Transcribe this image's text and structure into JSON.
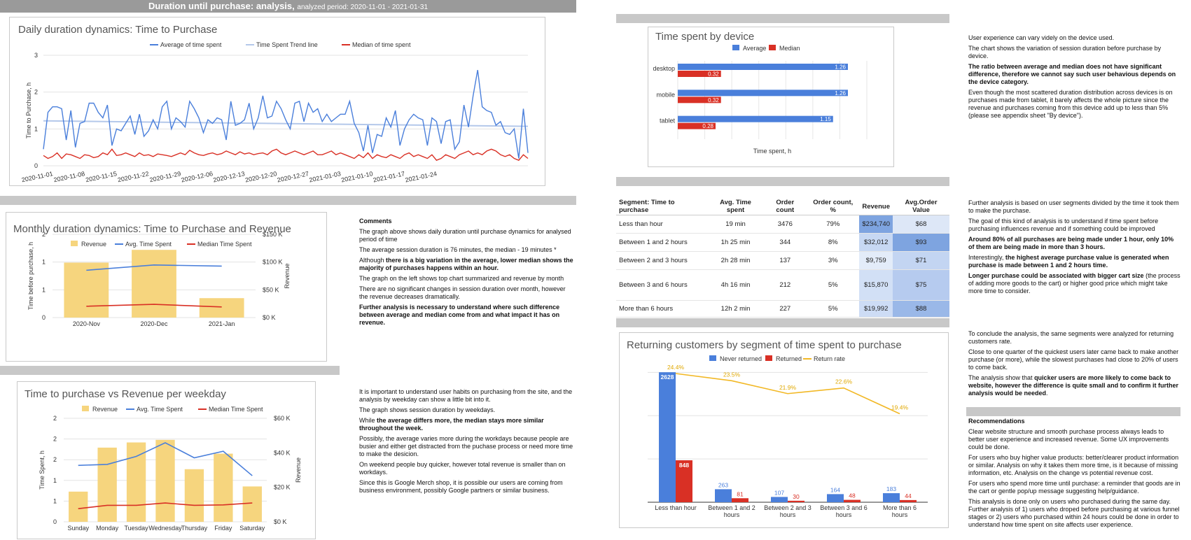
{
  "header": {
    "title": "Duration until purchase: analysis,",
    "period": "analyzed period: 2020-11-01 - 2021-01-31"
  },
  "colors": {
    "blue": "#4a7fdb",
    "lightblue": "#b4c8ea",
    "red": "#d93025",
    "yellow": "#f6d57e",
    "gold": "#f2b825"
  },
  "chart_data": [
    {
      "type": "line",
      "title": "Daily duration dynamics: Time to Purchase",
      "ylabel": "Time to Purchase, h",
      "ylim": [
        0,
        3
      ],
      "yticks": [
        "0",
        "1",
        "2",
        "3"
      ],
      "xticks": [
        "2020-11-01",
        "2020-11-08",
        "2020-11-15",
        "2020-11-22",
        "2020-11-29",
        "2020-12-06",
        "2020-12-13",
        "2020-12-20",
        "2020-12-27",
        "2021-01-03",
        "2021-01-10",
        "2021-01-17",
        "2021-01-24"
      ],
      "series": [
        {
          "name": "Average of time spent",
          "values": [
            0.45,
            1.45,
            1.6,
            1.6,
            1.55,
            0.7,
            1.5,
            0.5,
            1.15,
            1.2,
            1.7,
            1.7,
            1.45,
            1.3,
            1.65,
            0.55,
            1.0,
            0.95,
            1.15,
            1.35,
            0.85,
            1.4,
            0.8,
            0.95,
            1.25,
            1.0,
            1.6,
            1.75,
            1.0,
            1.3,
            1.2,
            1.05,
            1.75,
            1.55,
            1.3,
            0.9,
            1.25,
            1.15,
            1.3,
            1.25,
            0.7,
            1.75,
            1.1,
            1.15,
            1.25,
            1.7,
            1.0,
            1.3,
            1.9,
            1.3,
            1.35,
            1.75,
            1.55,
            1.25,
            1.0,
            1.7,
            1.75,
            1.2,
            1.7,
            1.45,
            1.55,
            1.2,
            1.4,
            1.2,
            1.3,
            1.4,
            1.4,
            1.75,
            1.15,
            0.9,
            0.4,
            1.1,
            0.35,
            0.85,
            0.8,
            1.3,
            1.05,
            1.5,
            0.55,
            1.0,
            1.25,
            1.4,
            1.3,
            1.25,
            0.55,
            1.3,
            1.2,
            0.6,
            1.2,
            1.25,
            0.45,
            0.65,
            1.65,
            1.05,
            1.9,
            2.6,
            1.6,
            1.5,
            1.45,
            1.1,
            1.2,
            0.9,
            0.85,
            1.0,
            0.2,
            1.55,
            0.35
          ]
        },
        {
          "name": "Time Spent Trend line",
          "values": [
            1.22,
            1.07
          ]
        },
        {
          "name": "Median of time spent",
          "values": [
            0.28,
            0.2,
            0.25,
            0.35,
            0.2,
            0.32,
            0.3,
            0.25,
            0.2,
            0.3,
            0.28,
            0.22,
            0.25,
            0.35,
            0.3,
            0.45,
            0.28,
            0.3,
            0.35,
            0.3,
            0.25,
            0.35,
            0.28,
            0.3,
            0.25,
            0.32,
            0.3,
            0.28,
            0.25,
            0.3,
            0.35,
            0.3,
            0.42,
            0.35,
            0.3,
            0.28,
            0.32,
            0.35,
            0.3,
            0.33,
            0.4,
            0.35,
            0.3,
            0.38,
            0.32,
            0.35,
            0.3,
            0.33,
            0.35,
            0.3,
            0.4,
            0.45,
            0.35,
            0.3,
            0.35,
            0.4,
            0.35,
            0.3,
            0.35,
            0.4,
            0.3,
            0.3,
            0.35,
            0.4,
            0.3,
            0.35,
            0.3,
            0.25,
            0.2,
            0.3,
            0.22,
            0.35,
            0.2,
            0.3,
            0.25,
            0.22,
            0.3,
            0.25,
            0.2,
            0.3,
            0.35,
            0.25,
            0.3,
            0.25,
            0.2,
            0.3,
            0.15,
            0.2,
            0.3,
            0.25,
            0.2,
            0.3,
            0.35,
            0.4,
            0.3,
            0.35,
            0.3,
            0.4,
            0.45,
            0.4,
            0.3,
            0.25,
            0.3,
            0.2,
            0.15,
            0.3,
            0.2
          ]
        }
      ]
    },
    {
      "type": "bar",
      "title": "Monthly duration dynamics: Time to Purchase and Revenue",
      "categories": [
        "2020-Nov",
        "2020-Dec",
        "2021-Jan"
      ],
      "ylabel": "Time before purchase, h",
      "ylabel_right": "Revenue",
      "yticks_left": [
        "0",
        "1",
        "1",
        "2"
      ],
      "yticks_right": [
        "$0 K",
        "$50 K",
        "$100 K",
        "$150 K"
      ],
      "ylim_right": [
        0,
        150000
      ],
      "series": [
        {
          "name": "Revenue",
          "values": [
            99000,
            122000,
            35000
          ]
        },
        {
          "name": "Avg. Time Spent",
          "values": [
            1.25,
            1.39,
            1.36
          ]
        },
        {
          "name": "Median Time Spent",
          "values": [
            0.3,
            0.35,
            0.28
          ]
        }
      ]
    },
    {
      "type": "bar",
      "title": "Time to purchase vs Revenue per weekday",
      "categories": [
        "Sunday",
        "Monday",
        "Tuesday",
        "Wednesday",
        "Thursday",
        "Friday",
        "Saturday"
      ],
      "ylabel": "Time Spent, h",
      "ylabel_right": "Revenue",
      "yticks_left": [
        "0",
        "1",
        "1",
        "2",
        "2",
        "2"
      ],
      "yticks_right": [
        "$0 K",
        "$20 K",
        "$40 K",
        "$60 K"
      ],
      "ylim_right": [
        0,
        60000
      ],
      "series": [
        {
          "name": "Revenue",
          "values": [
            17500,
            43000,
            46000,
            47500,
            30500,
            39500,
            20500
          ]
        },
        {
          "name": "Avg. Time Spent",
          "values": [
            1.2,
            1.22,
            1.39,
            1.68,
            1.36,
            1.5,
            0.98
          ]
        },
        {
          "name": "Median Time Spent",
          "values": [
            0.28,
            0.35,
            0.35,
            0.4,
            0.35,
            0.36,
            0.4
          ]
        }
      ]
    },
    {
      "type": "bar",
      "orientation": "horizontal",
      "title": "Time spent by device",
      "categories": [
        "desktop",
        "mobile",
        "tablet"
      ],
      "xlabel": "Time spent, h",
      "xlim": [
        0,
        1.4
      ],
      "series": [
        {
          "name": "Average",
          "values": [
            1.26,
            1.26,
            1.15
          ],
          "labels": [
            "1.26",
            "1.26",
            "1.15"
          ]
        },
        {
          "name": "Median",
          "values": [
            0.32,
            0.32,
            0.28
          ],
          "labels": [
            "0.32",
            "0.32",
            "0.28"
          ]
        }
      ]
    },
    {
      "type": "bar",
      "title": "Returning customers by segment of time spent to purchase",
      "categories": [
        "Less than hour",
        "Between 1 and 2 hours",
        "Between 2 and 3 hours",
        "Between 3 and 6 hours",
        "More than 6 hours"
      ],
      "ylim": [
        0,
        2800
      ],
      "series": [
        {
          "name": "Never returned",
          "values": [
            2628,
            263,
            107,
            164,
            183
          ],
          "labels": [
            "2628",
            "263",
            "107",
            "164",
            "183"
          ]
        },
        {
          "name": "Returned",
          "values": [
            848,
            81,
            30,
            48,
            44
          ],
          "labels": [
            "848",
            "81",
            "30",
            "48",
            "44"
          ]
        },
        {
          "name": "Return rate",
          "values": [
            24.4,
            23.5,
            21.9,
            22.6,
            19.4
          ],
          "labels": [
            "24.4%",
            "23.5%",
            "21.9%",
            "22.6%",
            "19.4%"
          ]
        }
      ]
    },
    {
      "type": "table",
      "columns": [
        "Segment: Time to purchase",
        "Avg. Time spent",
        "Order count",
        "Order count, %",
        "Revenue",
        "Avg.Order Value"
      ],
      "rows": [
        [
          "Less than hour",
          "19 min",
          "3476",
          "79%",
          "$234,740",
          "$68"
        ],
        [
          "Between 1 and 2 hours",
          "1h 25 min",
          "344",
          "8%",
          "$32,012",
          "$93"
        ],
        [
          "Between 2 and 3 hours",
          "2h 28 min",
          "137",
          "3%",
          "$9,759",
          "$71"
        ],
        [
          "Between 3 and 6 hours",
          "4h 16 min",
          "212",
          "5%",
          "$15,870",
          "$75"
        ],
        [
          "More than 6 hours",
          "12h 2 min",
          "227",
          "5%",
          "$19,992",
          "$88"
        ]
      ],
      "revenue_colors": [
        "#7ea4e0",
        "#c7d8f3",
        "#e3ecf9",
        "#d2e0f6",
        "#cddcf5"
      ],
      "aov_colors": [
        "#dde7f7",
        "#7ea4e0",
        "#c3d5f2",
        "#b6cbef",
        "#9ab8e8"
      ]
    }
  ],
  "comments": {
    "heading": "Comments",
    "monthly": [
      {
        "text": "The graph above shows daily duration until purchase dynamics for analysed period of time",
        "bold": false
      },
      {
        "text": "The average session duration is 76 minutes, the median - 19 minutes *",
        "bold": false
      },
      {
        "text_before": "Although ",
        "text_bold": "there is a big variation in the average, lower median shows the majority of purchases happens within an hour."
      },
      {
        "text": "The graph on the left shows top chart summarized and revenue by month",
        "bold": false
      },
      {
        "text": "There are no significant changes in session duration over month, however the revenue decreases dramatically.",
        "bold": false
      },
      {
        "text": "Further analysis is necessary to understand where such difference between average and median come from and what impact it has on revenue.",
        "bold": true
      }
    ],
    "weekday": [
      {
        "text": "It is important to understand user habits on purchasing from the site, and the analysis by weekday can show a little bit into it.",
        "bold": false
      },
      {
        "text": "The graph shows session duration by weekdays.",
        "bold": false
      },
      {
        "text_before": "While ",
        "text_bold": "the average differs more, the median stays more similar throughout the week."
      },
      {
        "text": "Possibly, the average varies more during the workdays because people are busier and either get distracted from the puchase process or need more time to make the desicion.",
        "bold": false
      },
      {
        "text": "On weekend people buy quicker, however total revenue is smaller than on workdays.",
        "bold": false
      },
      {
        "text": "Since this is Google Merch shop, it is possible our users are coming from business environment, possibly Google partners or similar business.",
        "bold": false
      }
    ],
    "device": [
      {
        "text": "User experience can vary videly on the device used.",
        "bold": false
      },
      {
        "text": "The chart shows the variation of session duration before purchase by device.",
        "bold": false
      },
      {
        "text": "The ratio between average and median does not have significant difference, therefore we cannot say such user behavious depends on the device category.",
        "bold": true
      },
      {
        "text": "Even though the most scattered duration distribution across devices is on purchases made from tablet, it barely affects the whole picture since the revenue and purchases coming from  this device add up to less than 5% (please see appendix sheet \"By device\").",
        "bold": false
      }
    ],
    "segments": [
      {
        "text": "Further analysis is based on user segments divided by the time it took them to make the purchase.",
        "bold": false
      },
      {
        "text": "The goal of this kind of analysis is to understand if time spent before purchasing influences revenue and if something could be improved",
        "bold": false
      },
      {
        "text": "Around 80% of all purchases are being made under 1 hour, only 10% of them are being made in more than 3 hours.",
        "bold": true
      },
      {
        "text_before": "Interestingly, ",
        "text_bold": "the highest average purchase value is generated when purchase is made between 1 and 2 hours time."
      },
      {
        "text_bold_first": "Longer purchase could be associated with bigger cart size",
        "text_after": " (the process of adding more goods to the cart) or higher good price which might take more time to consider."
      }
    ],
    "returning": [
      {
        "text": "To conclude the analysis, the same segments were analyzed for returning customers rate.",
        "bold": false
      },
      {
        "text": "Close to one quarter of the quickest users later came back to make another purchase (or more), while the slowest purchases had close to 20% of users to come back.",
        "bold": false
      },
      {
        "text_before": "The analysis show that ",
        "text_bold": "quicker users are more likely to come back to website, however the difference is quite small and to confirm it further analysis would be needed",
        "text_after": "."
      }
    ],
    "recommendations_heading": "Recommendations",
    "recommendations": [
      {
        "text": "Clear website structure and smooth purchase process always leads to better user experience and increased revenue. Some UX improvements could be done.",
        "bold": false
      },
      {
        "text": "For users who buy higher value products: better/clearer product information or similar. Analysis on why it takes them more time, is it because of missing information, etc. Analysis on the change vs potential revenue cost.",
        "bold": false
      },
      {
        "text": "For users who spend more time until purchase: a reminder that goods are in the cart or gentle pop/up message suggesting help/guidance.",
        "bold": false
      },
      {
        "text": "This analysis is done only on users who purchased during the same day. Further analysis of 1) users who droped before purchasing at various funnel stages or 2) users who purchased within 24 hours could be done in order to understand how time spent on site affects user experience.",
        "bold": false
      }
    ]
  }
}
